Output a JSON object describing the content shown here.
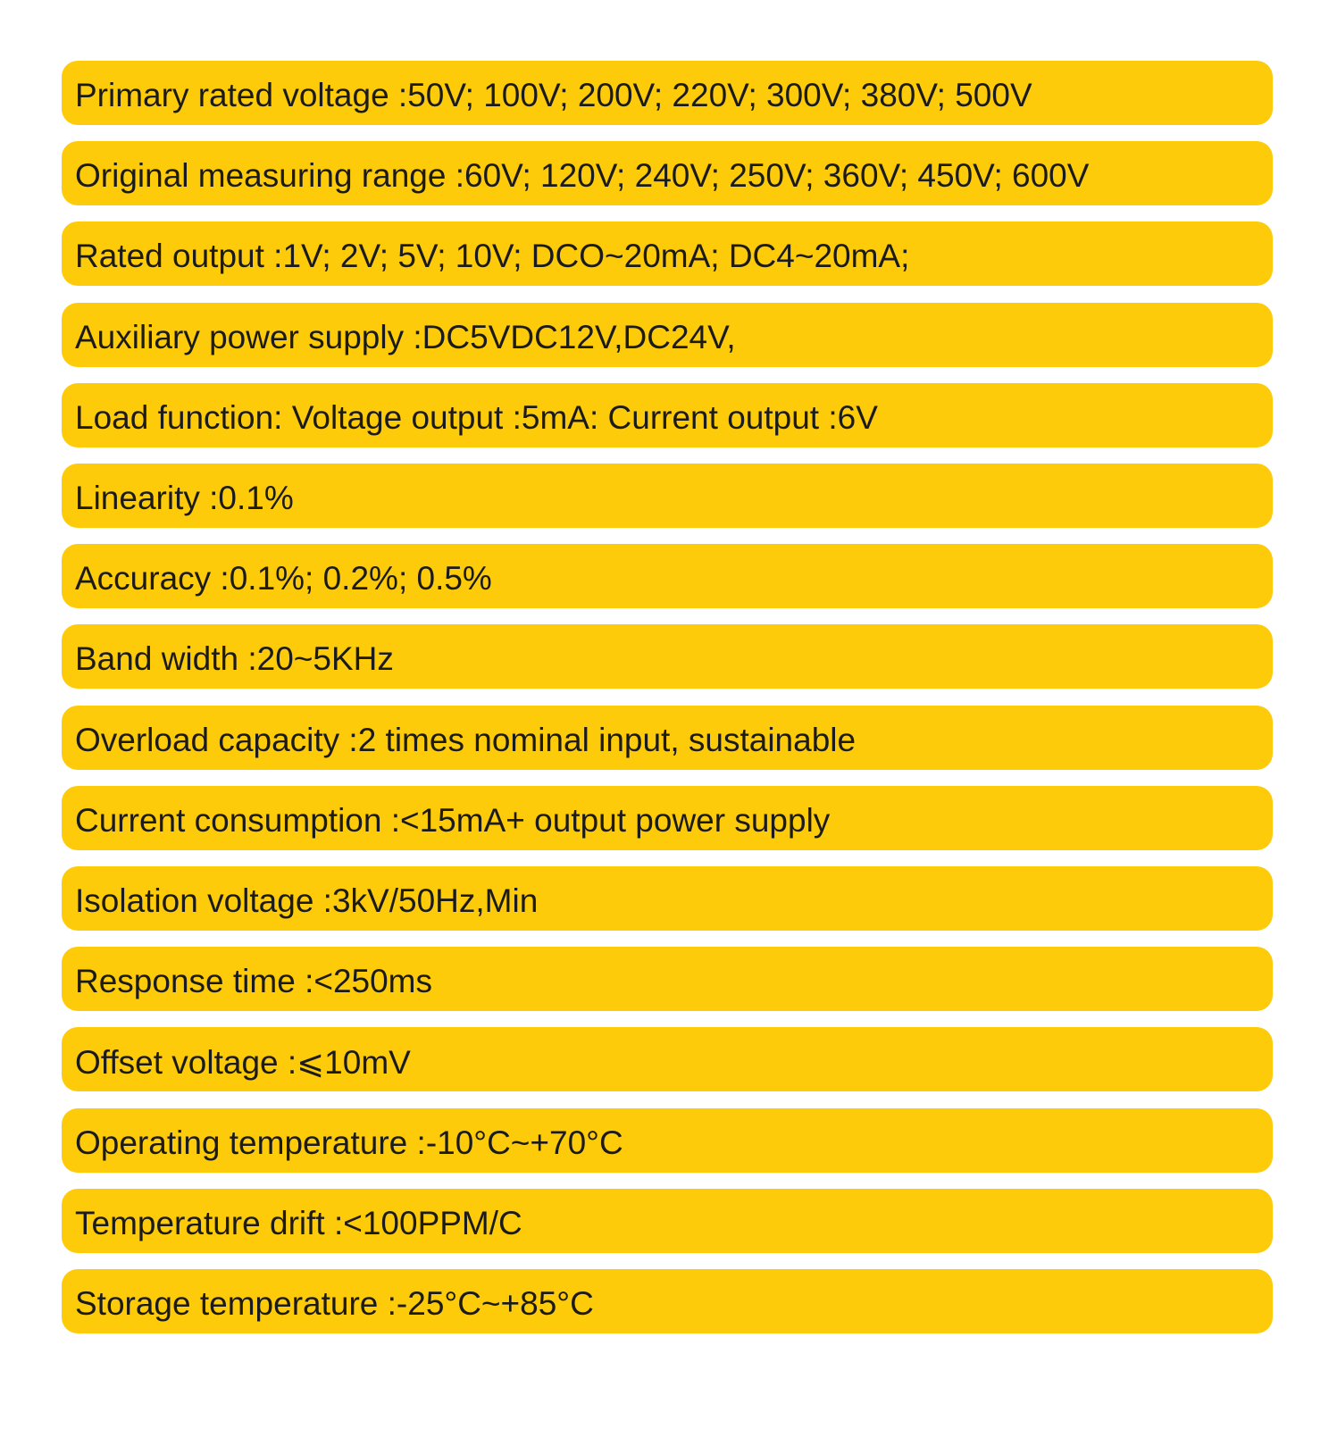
{
  "specs": [
    "Primary rated voltage :50V; 100V; 200V; 220V; 300V; 380V; 500V",
    "Original measuring range :60V; 120V; 240V; 250V; 360V; 450V; 600V",
    "Rated output :1V; 2V; 5V; 10V; DCO~20mA; DC4~20mA;",
    "Auxiliary power supply :DC5VDC12V,DC24V,",
    "Load function: Voltage output :5mA: Current output :6V",
    "Linearity :0.1%",
    "Accuracy :0.1%; 0.2%; 0.5%",
    "Band width :20~5KHz",
    "Overload capacity :2 times nominal input, sustainable",
    "Current consumption :<15mA+ output power supply",
    "Isolation voltage :3kV/50Hz,Min",
    "Response time :<250ms",
    "Offset voltage :⩽10mV",
    "Operating temperature :-10°C~+70°C",
    "Temperature drift :<100PPM/C",
    "Storage temperature :-25°C~+85°C"
  ]
}
